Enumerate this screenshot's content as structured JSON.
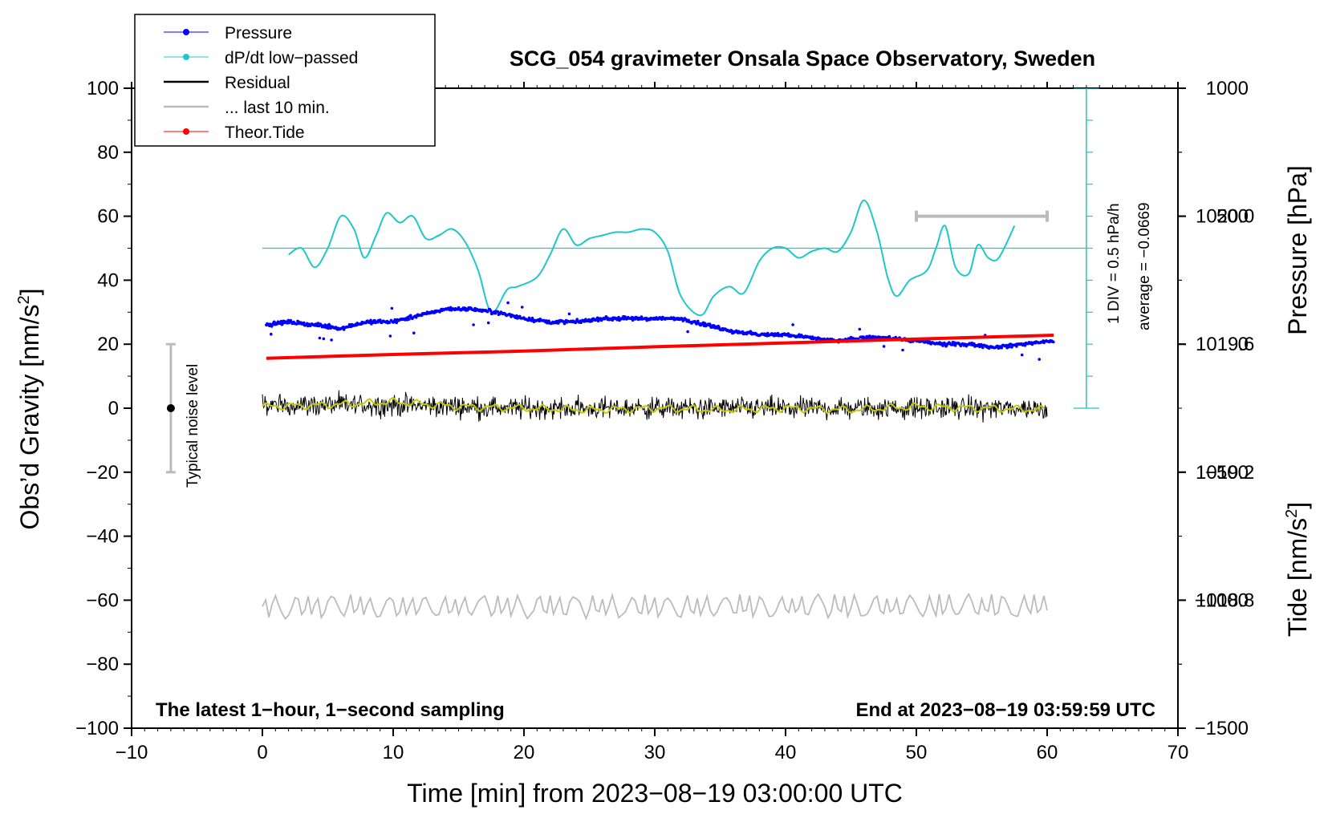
{
  "chart_data": {
    "type": "line",
    "title": "SCG_054 gravimeter Onsala Space Observatory, Sweden",
    "xlabel": "Time [min] from 2023−08−19 03:00:00 UTC",
    "ylabel_left": "Obs’d Gravity [nm/s",
    "ylabel_left_sup": "2",
    "ylabel_left_close": "]",
    "ylabel_right_top": "Pressure [hPa]",
    "ylabel_right_bottom": "Tide [nm/s",
    "ylabel_right_bottom_sup": "2",
    "ylabel_right_bottom_close": "]",
    "xlim": [
      -10,
      70
    ],
    "ylim_left": [
      -100,
      100
    ],
    "ylim_pressure": [
      1018.4,
      1020.4
    ],
    "ylim_tide": [
      -1500,
      1000
    ],
    "x_ticks": [
      -10,
      0,
      10,
      20,
      30,
      40,
      50,
      60,
      70
    ],
    "x_tick_labels": [
      "−10",
      "0",
      "10",
      "20",
      "30",
      "40",
      "50",
      "60",
      "70"
    ],
    "y_left_ticks": [
      100,
      80,
      60,
      40,
      20,
      0,
      -20,
      -40,
      -60,
      -80,
      -100
    ],
    "y_left_tick_labels": [
      "100",
      "80",
      "60",
      "40",
      "20",
      "0",
      "−20",
      "−40",
      "−60",
      "−80",
      "−100"
    ],
    "pressure_ticks": [
      1020.0,
      1019.6,
      1019.2,
      1018.8
    ],
    "pressure_tick_labels": [
      "1020.0",
      "1019.6",
      "1019.2",
      "1018.8"
    ],
    "tide_ticks": [
      1000,
      500,
      0,
      -500,
      -1000,
      -1500
    ],
    "tide_tick_labels": [
      "1000",
      "500",
      "0",
      "−500",
      "−1000",
      "−1500"
    ],
    "legend": [
      {
        "label": "Pressure",
        "color": "#0000ff",
        "marker": true
      },
      {
        "label": "dP/dt low−passed",
        "color": "#1fc8c8",
        "marker": true
      },
      {
        "label": "Residual",
        "color": "#000000",
        "marker": false
      },
      {
        "label": "... last 10 min.",
        "color": "#bbbbbb",
        "marker": false
      },
      {
        "label": "Theor.Tide",
        "color": "#ff0000",
        "marker": true
      }
    ],
    "legend_position": "top-left",
    "annotations": {
      "bottom_left": "The latest 1−hour, 1−second sampling",
      "bottom_right": "End at 2023−08−19 03:59:59 UTC",
      "div_note": "1 DIV = 0.5 hPa/h",
      "average_note": "average = −0.0669",
      "noise_label": "Typical noise level"
    },
    "noise_bar": {
      "x": -7,
      "y_center": 0,
      "y_low": -20,
      "y_high": 20
    },
    "last10_bar": {
      "x_start": 50,
      "x_end": 60,
      "tide_value": 500
    },
    "dpdt_baseline": 50,
    "dpdt_scale_bar": {
      "x": 63,
      "y_top": 100,
      "y_bottom": 0,
      "divisions": 10
    },
    "series": [
      {
        "name": "Pressure",
        "axis": "pressure",
        "color": "#0000ff",
        "x": [
          0.3,
          2,
          4,
          6,
          8,
          10,
          12,
          14,
          16,
          18,
          20,
          22,
          24,
          26,
          28,
          30,
          32,
          34,
          36,
          38,
          40,
          42,
          44,
          46,
          48,
          50,
          52,
          54,
          56,
          58,
          60.5
        ],
        "values": [
          1019.66,
          1019.67,
          1019.66,
          1019.65,
          1019.67,
          1019.67,
          1019.69,
          1019.71,
          1019.71,
          1019.7,
          1019.68,
          1019.67,
          1019.67,
          1019.68,
          1019.68,
          1019.68,
          1019.68,
          1019.66,
          1019.64,
          1019.63,
          1019.63,
          1019.62,
          1019.61,
          1019.62,
          1019.62,
          1019.61,
          1019.6,
          1019.6,
          1019.59,
          1019.6,
          1019.61
        ]
      },
      {
        "name": "dP/dt low−passed",
        "axis": "left",
        "color": "#1fc8c8",
        "x": [
          2,
          3,
          4,
          5,
          6,
          7,
          7.8,
          8.7,
          9.5,
          10.5,
          11.5,
          12.5,
          13.5,
          14.5,
          15.5,
          16.5,
          17.5,
          18.7,
          19.5,
          21,
          22,
          23,
          24,
          25,
          26,
          27,
          28,
          29,
          30,
          31,
          32,
          33.5,
          34.5,
          35.7,
          36.8,
          38,
          39,
          40,
          41,
          42,
          43,
          44,
          45,
          46,
          47,
          47.8,
          48.5,
          49.5,
          50.8,
          51.5,
          52.2,
          53,
          54,
          54.7,
          55.5,
          56.3,
          57.5
        ],
        "values": [
          48,
          50,
          44,
          50,
          60,
          56,
          47,
          54,
          61,
          58,
          60,
          53,
          54,
          56,
          52,
          43,
          30,
          37,
          38,
          41,
          48,
          56,
          51,
          53,
          54,
          55,
          55,
          56,
          55,
          49,
          35,
          29,
          35,
          38,
          36,
          46,
          50,
          50,
          47,
          49,
          50,
          49,
          55,
          65,
          55,
          41,
          35,
          40,
          43,
          50,
          57,
          44,
          42,
          51,
          47,
          47,
          57
        ]
      },
      {
        "name": "Residual",
        "axis": "left",
        "color": "#000000",
        "x": [
          0,
          10,
          20,
          30,
          40,
          50,
          60
        ],
        "values": [
          1,
          1,
          0,
          0,
          0,
          0,
          0
        ],
        "noise_amplitude": 5
      },
      {
        "name": "Residual smoothed",
        "axis": "left",
        "color": "#c8c800",
        "x": [
          0,
          5,
          10,
          15,
          20,
          25,
          30,
          35,
          40,
          45,
          50,
          55,
          60
        ],
        "values": [
          0.5,
          1,
          2,
          0.5,
          0,
          -0.5,
          0,
          -0.5,
          0,
          -0.5,
          0.5,
          0,
          -0.5
        ]
      },
      {
        "name": "Theor.Tide",
        "axis": "tide",
        "color": "#ff0000",
        "x": [
          0.3,
          10,
          20,
          30,
          40,
          50,
          60.5
        ],
        "values": [
          -55,
          -40,
          -27,
          -10,
          5,
          20,
          35
        ]
      },
      {
        "name": "... last 10 min.",
        "axis": "left",
        "color": "#bbbbbb",
        "x": [
          0,
          60
        ],
        "values": [
          -62,
          -62
        ],
        "oscillation_amplitude": 4
      }
    ]
  }
}
